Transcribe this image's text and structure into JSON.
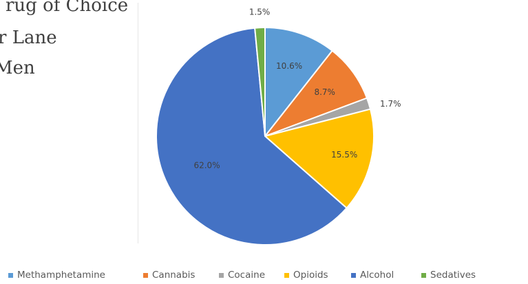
{
  "title_lines": [
    "rug of Choice",
    "r Lane",
    "Men"
  ],
  "chart_data": {
    "type": "pie",
    "title": "",
    "slices": [
      {
        "name": "Methamphetamine",
        "value": 10.6,
        "label": "10.6%",
        "color": "#5b9bd5"
      },
      {
        "name": "Cannabis",
        "value": 8.7,
        "label": "8.7%",
        "color": "#ed7d31"
      },
      {
        "name": "Cocaine",
        "value": 1.7,
        "label": "1.7%",
        "color": "#a5a5a5"
      },
      {
        "name": "Opioids",
        "value": 15.5,
        "label": "15.5%",
        "color": "#ffc000"
      },
      {
        "name": "Alcohol",
        "value": 62.0,
        "label": "62.0%",
        "color": "#4472c4"
      },
      {
        "name": "Sedatives",
        "value": 1.5,
        "label": "1.5%",
        "color": "#70ad47"
      }
    ],
    "legend": {
      "position": "bottom",
      "visible": true
    }
  }
}
